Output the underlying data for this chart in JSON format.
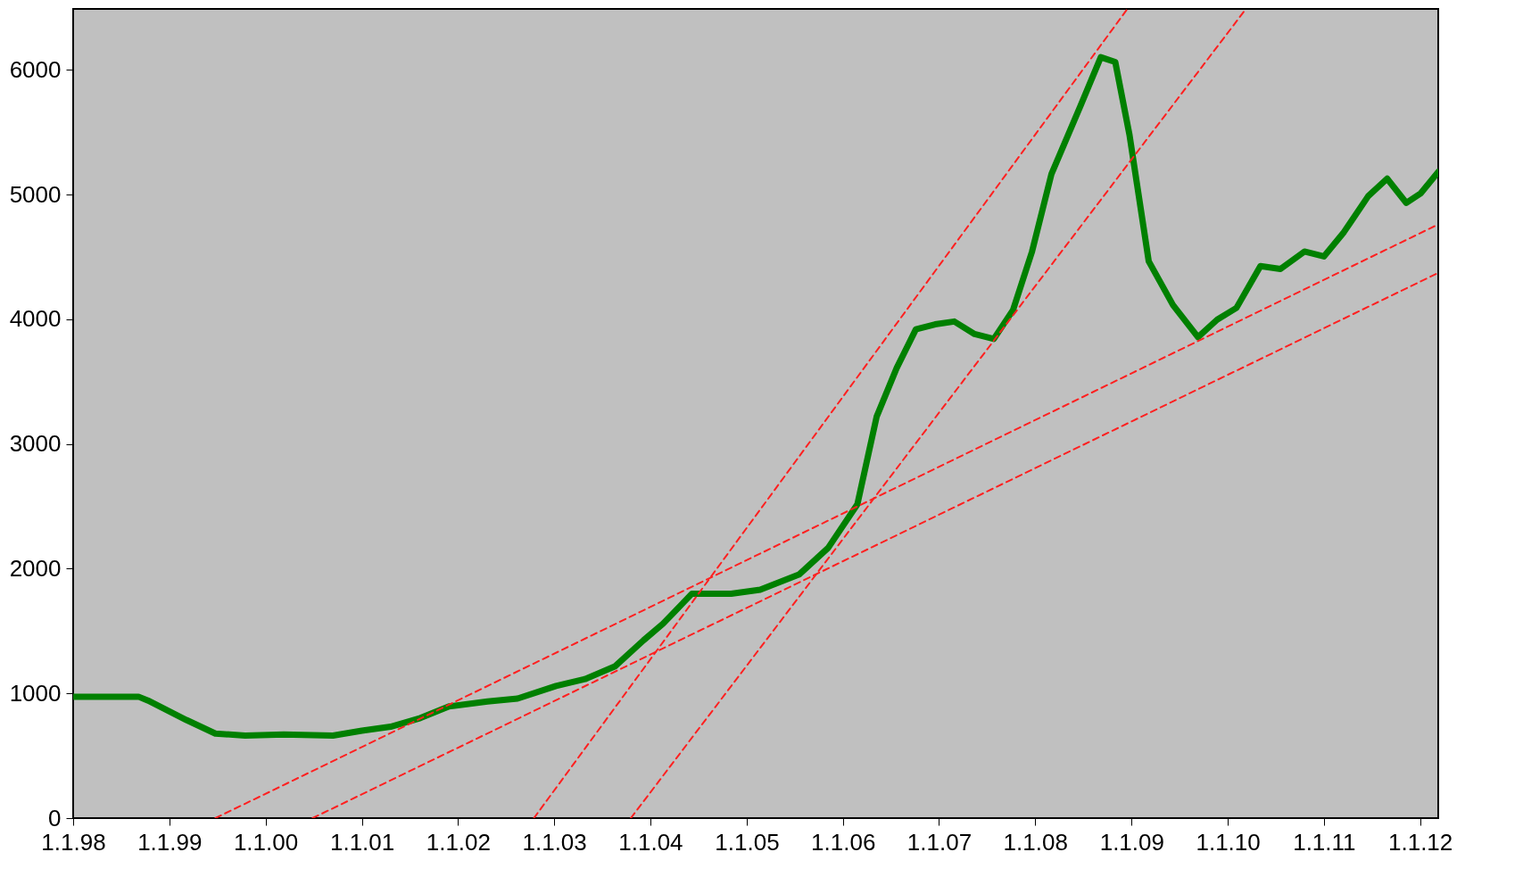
{
  "chart_data": {
    "type": "line",
    "xlim": [
      "1998-01-01",
      "2012-03-10"
    ],
    "ylim": [
      0,
      6490
    ],
    "xticks": [
      {
        "value": "1998-01-01",
        "label": "1.1.98"
      },
      {
        "value": "1999-01-01",
        "label": "1.1.99"
      },
      {
        "value": "2000-01-01",
        "label": "1.1.00"
      },
      {
        "value": "2001-01-01",
        "label": "1.1.01"
      },
      {
        "value": "2002-01-01",
        "label": "1.1.02"
      },
      {
        "value": "2003-01-01",
        "label": "1.1.03"
      },
      {
        "value": "2004-01-01",
        "label": "1.1.04"
      },
      {
        "value": "2005-01-01",
        "label": "1.1.05"
      },
      {
        "value": "2006-01-01",
        "label": "1.1.06"
      },
      {
        "value": "2007-01-01",
        "label": "1.1.07"
      },
      {
        "value": "2008-01-01",
        "label": "1.1.08"
      },
      {
        "value": "2009-01-01",
        "label": "1.1.09"
      },
      {
        "value": "2010-01-01",
        "label": "1.1.10"
      },
      {
        "value": "2011-01-01",
        "label": "1.1.11"
      },
      {
        "value": "2012-01-01",
        "label": "1.1.12"
      }
    ],
    "yticks": [
      0,
      1000,
      2000,
      3000,
      4000,
      5000,
      6000
    ],
    "grid": false,
    "marker": "none",
    "series": [
      {
        "type": "line",
        "color": "#008000",
        "line_style": "solid",
        "x": [
          "1998-01-01",
          "1998-09-06",
          "1998-10-12",
          "1999-03-07",
          "1999-06-25",
          "1999-10-16",
          "2000-03-11",
          "2000-09-13",
          "2001-01-01",
          "2001-04-20",
          "2001-08-11",
          "2001-11-28",
          "2002-04-23",
          "2002-08-15",
          "2003-01-08",
          "2003-04-28",
          "2003-08-19",
          "2003-12-06",
          "2004-02-18",
          "2004-06-07",
          "2004-11-03",
          "2005-02-21",
          "2005-07-20",
          "2005-11-06",
          "2006-02-25",
          "2006-05-09",
          "2006-07-24",
          "2006-10-05",
          "2006-12-17",
          "2007-02-28",
          "2007-05-16",
          "2007-07-28",
          "2007-10-09",
          "2007-12-20",
          "2008-03-03",
          "2008-06-21",
          "2008-09-06",
          "2008-10-31",
          "2008-12-24",
          "2009-03-07",
          "2009-06-07",
          "2009-09-10",
          "2009-11-22",
          "2010-02-03",
          "2010-05-05",
          "2010-07-20",
          "2010-10-19",
          "2011-01-01",
          "2011-03-18",
          "2011-06-18",
          "2011-08-29",
          "2011-11-10",
          "2012-01-04",
          "2012-03-10"
        ],
        "values": [
          974,
          974,
          943,
          787,
          678,
          662,
          670,
          662,
          701,
          733,
          803,
          896,
          935,
          959,
          1060,
          1115,
          1216,
          1426,
          1559,
          1800,
          1800,
          1832,
          1956,
          2167,
          2517,
          3219,
          3609,
          3920,
          3960,
          3983,
          3882,
          3843,
          4076,
          4544,
          5168,
          5713,
          6103,
          6064,
          5479,
          4466,
          4115,
          3858,
          3998,
          4092,
          4427,
          4404,
          4544,
          4505,
          4700,
          4988,
          5129,
          4934,
          5012,
          5183
        ]
      },
      {
        "type": "line",
        "color": "#ff2020",
        "line_style": "dashed",
        "x": [
          "2002-10-16",
          "2008-12-16"
        ],
        "values": [
          0,
          6490
        ]
      },
      {
        "type": "line",
        "color": "#ff2020",
        "line_style": "dashed",
        "x": [
          "2003-10-19",
          "2010-03-11"
        ],
        "values": [
          0,
          6490
        ]
      },
      {
        "type": "line",
        "color": "#ff2020",
        "line_style": "dashed",
        "x": [
          "1999-06-25",
          "2012-03-10"
        ],
        "values": [
          0,
          4762
        ]
      },
      {
        "type": "line",
        "color": "#ff2020",
        "line_style": "dashed",
        "x": [
          "2000-06-28",
          "2012-03-10"
        ],
        "values": [
          0,
          4373
        ]
      }
    ]
  }
}
